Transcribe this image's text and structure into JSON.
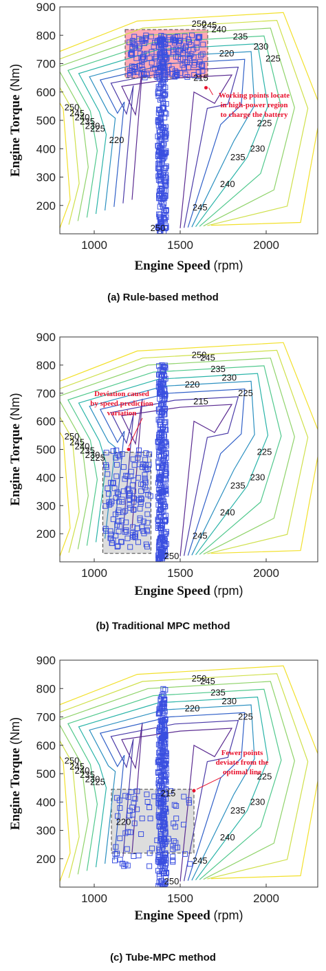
{
  "chart_data": [
    {
      "id": "a",
      "type": "scatter",
      "subtype": "contour-with-scatter",
      "caption": "(a) Rule-based method",
      "xlabel": "Engine Speed",
      "xunit": "(rpm)",
      "ylabel": "Engine Torque",
      "yunit": "(Nm)",
      "xlim": [
        800,
        2300
      ],
      "ylim": [
        100,
        900
      ],
      "xticks": [
        1000,
        1500,
        2000
      ],
      "yticks": [
        200,
        300,
        400,
        500,
        600,
        700,
        800,
        900
      ],
      "grid": false,
      "contour_labels": [
        {
          "text": "250",
          "x": 1370,
          "y": 110
        },
        {
          "text": "245",
          "x": 1615,
          "y": 182
        },
        {
          "text": "240",
          "x": 1775,
          "y": 265
        },
        {
          "text": "235",
          "x": 1835,
          "y": 360
        },
        {
          "text": "230",
          "x": 1950,
          "y": 390
        },
        {
          "text": "225",
          "x": 1990,
          "y": 480
        },
        {
          "text": "220",
          "x": 1130,
          "y": 420
        },
        {
          "text": "215",
          "x": 1620,
          "y": 640
        },
        {
          "text": "220",
          "x": 1770,
          "y": 725
        },
        {
          "text": "225",
          "x": 2040,
          "y": 707
        },
        {
          "text": "230",
          "x": 1970,
          "y": 750
        },
        {
          "text": "235",
          "x": 1850,
          "y": 785
        },
        {
          "text": "240",
          "x": 1725,
          "y": 810
        },
        {
          "text": "245",
          "x": 1670,
          "y": 825
        },
        {
          "text": "250",
          "x": 1610,
          "y": 830
        },
        {
          "text": "250",
          "x": 870,
          "y": 535
        },
        {
          "text": "245",
          "x": 900,
          "y": 515
        },
        {
          "text": "240",
          "x": 930,
          "y": 500
        },
        {
          "text": "235",
          "x": 960,
          "y": 485
        },
        {
          "text": "230",
          "x": 990,
          "y": 470
        },
        {
          "text": "225",
          "x": 1020,
          "y": 460
        }
      ],
      "region": {
        "x": [
          1180,
          1660
        ],
        "y": [
          650,
          820
        ],
        "color": "#ff9aa8"
      },
      "annotation": {
        "lines": [
          "Working points locate",
          "in high-power region",
          "to charge the battery"
        ],
        "x": 1930,
        "y": 580
      },
      "points_description": "clustered near 1400 rpm from 100 to 800 Nm, dense 650-800 Nm region"
    },
    {
      "id": "b",
      "type": "scatter",
      "subtype": "contour-with-scatter",
      "caption": "(b) Traditional MPC method",
      "xlabel": "Engine Speed",
      "xunit": "(rpm)",
      "ylabel": "Engine Torque",
      "yunit": "(Nm)",
      "xlim": [
        800,
        2300
      ],
      "ylim": [
        100,
        900
      ],
      "xticks": [
        1000,
        1500,
        2000
      ],
      "yticks": [
        200,
        300,
        400,
        500,
        600,
        700,
        800,
        900
      ],
      "grid": false,
      "contour_labels": [
        {
          "text": "250",
          "x": 1450,
          "y": 110
        },
        {
          "text": "245",
          "x": 1615,
          "y": 182
        },
        {
          "text": "240",
          "x": 1775,
          "y": 265
        },
        {
          "text": "235",
          "x": 1835,
          "y": 360
        },
        {
          "text": "230",
          "x": 1950,
          "y": 390
        },
        {
          "text": "225",
          "x": 1990,
          "y": 480
        },
        {
          "text": "215",
          "x": 1620,
          "y": 660
        },
        {
          "text": "220",
          "x": 1570,
          "y": 720
        },
        {
          "text": "225",
          "x": 1880,
          "y": 690
        },
        {
          "text": "230",
          "x": 1785,
          "y": 745
        },
        {
          "text": "235",
          "x": 1720,
          "y": 775
        },
        {
          "text": "245",
          "x": 1660,
          "y": 815
        },
        {
          "text": "250",
          "x": 1610,
          "y": 825
        },
        {
          "text": "250",
          "x": 870,
          "y": 535
        },
        {
          "text": "245",
          "x": 900,
          "y": 515
        },
        {
          "text": "240",
          "x": 930,
          "y": 500
        },
        {
          "text": "235",
          "x": 960,
          "y": 485
        },
        {
          "text": "230",
          "x": 990,
          "y": 470
        },
        {
          "text": "225",
          "x": 1020,
          "y": 460
        }
      ],
      "region": {
        "x": [
          1050,
          1330
        ],
        "y": [
          130,
          490
        ],
        "color": "#d9d9d9"
      },
      "annotation": {
        "lines": [
          "Deviation caused",
          "by speed prediction",
          "variation"
        ],
        "x": 1160,
        "y": 690
      },
      "points_description": "vertical cluster near 1400 rpm plus scatter 1050-1330 rpm, 150-500 Nm"
    },
    {
      "id": "c",
      "type": "scatter",
      "subtype": "contour-with-scatter",
      "caption": "(c) Tube-MPC method",
      "xlabel": "Engine Speed",
      "xunit": "(rpm)",
      "ylabel": "Engine Torque",
      "yunit": "(Nm)",
      "xlim": [
        800,
        2300
      ],
      "ylim": [
        100,
        900
      ],
      "xticks": [
        1000,
        1500,
        2000
      ],
      "yticks": [
        200,
        300,
        400,
        500,
        600,
        700,
        800,
        900
      ],
      "grid": false,
      "contour_labels": [
        {
          "text": "250",
          "x": 1450,
          "y": 110
        },
        {
          "text": "245",
          "x": 1615,
          "y": 182
        },
        {
          "text": "240",
          "x": 1775,
          "y": 265
        },
        {
          "text": "235",
          "x": 1835,
          "y": 360
        },
        {
          "text": "230",
          "x": 1950,
          "y": 390
        },
        {
          "text": "225",
          "x": 1990,
          "y": 480
        },
        {
          "text": "220",
          "x": 1170,
          "y": 320
        },
        {
          "text": "215",
          "x": 1430,
          "y": 420
        },
        {
          "text": "220",
          "x": 1570,
          "y": 720
        },
        {
          "text": "225",
          "x": 1880,
          "y": 690
        },
        {
          "text": "230",
          "x": 1785,
          "y": 745
        },
        {
          "text": "235",
          "x": 1720,
          "y": 775
        },
        {
          "text": "245",
          "x": 1660,
          "y": 815
        },
        {
          "text": "250",
          "x": 1610,
          "y": 825
        },
        {
          "text": "250",
          "x": 870,
          "y": 535
        },
        {
          "text": "245",
          "x": 900,
          "y": 515
        },
        {
          "text": "240",
          "x": 930,
          "y": 500
        },
        {
          "text": "235",
          "x": 960,
          "y": 485
        },
        {
          "text": "230",
          "x": 990,
          "y": 470
        },
        {
          "text": "225",
          "x": 1020,
          "y": 460
        }
      ],
      "region": {
        "x": [
          1100,
          1580
        ],
        "y": [
          220,
          445
        ],
        "color": "#d9d9d9"
      },
      "annotation": {
        "lines": [
          "Fewer points",
          "deviate from the",
          "optimal line"
        ],
        "x": 1860,
        "y": 565
      },
      "points_description": "vertical cluster near 1400 rpm, few scatter points 1100-1580 rpm, 160-445 Nm"
    }
  ]
}
